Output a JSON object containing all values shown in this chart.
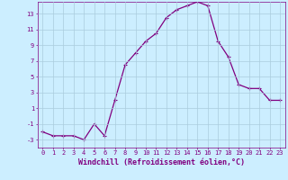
{
  "x": [
    0,
    1,
    2,
    3,
    4,
    5,
    6,
    7,
    8,
    9,
    10,
    11,
    12,
    13,
    14,
    15,
    16,
    17,
    18,
    19,
    20,
    21,
    22,
    23
  ],
  "y": [
    -2,
    -2.5,
    -2.5,
    -2.5,
    -3,
    -1,
    -2.5,
    2,
    6.5,
    8,
    9.5,
    10.5,
    12.5,
    13.5,
    14,
    14.5,
    14,
    9.5,
    7.5,
    4,
    3.5,
    3.5,
    2,
    2
  ],
  "line_color": "#800080",
  "marker": "+",
  "marker_size": 3.5,
  "marker_linewidth": 0.8,
  "background_color": "#cceeff",
  "grid_color": "#aaccdd",
  "xlabel": "Windchill (Refroidissement éolien,°C)",
  "ylabel": "",
  "ylim": [
    -4,
    14.5
  ],
  "xlim": [
    -0.5,
    23.5
  ],
  "yticks": [
    -3,
    -1,
    1,
    3,
    5,
    7,
    9,
    11,
    13
  ],
  "xticks": [
    0,
    1,
    2,
    3,
    4,
    5,
    6,
    7,
    8,
    9,
    10,
    11,
    12,
    13,
    14,
    15,
    16,
    17,
    18,
    19,
    20,
    21,
    22,
    23
  ],
  "tick_color": "#800080",
  "label_color": "#800080",
  "tick_fontsize": 5.0,
  "xlabel_fontsize": 6.0,
  "line_width": 0.9
}
